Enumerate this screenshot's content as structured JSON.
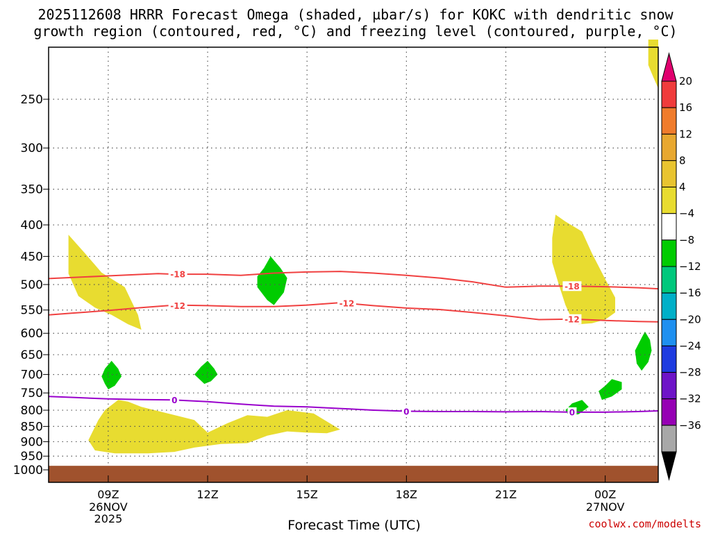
{
  "title": {
    "line1": "2025112608 HRRR Forecast Omega (shaded, µbar/s) for KOKC with dendritic snow",
    "line2": "growth region (contoured, red, °C) and freezing level (contoured, purple, °C)"
  },
  "x_axis_title": "Forecast Time (UTC)",
  "credit": "coolwx.com/modelts",
  "chart_data": {
    "type": "time-height contour",
    "x_range_hours": [
      7.2,
      25.6
    ],
    "x_ticks": [
      {
        "hour": 9,
        "label": "09Z",
        "sub": [
          "26NOV",
          "2025"
        ]
      },
      {
        "hour": 12,
        "label": "12Z",
        "sub": []
      },
      {
        "hour": 15,
        "label": "15Z",
        "sub": []
      },
      {
        "hour": 18,
        "label": "18Z",
        "sub": []
      },
      {
        "hour": 21,
        "label": "21Z",
        "sub": []
      },
      {
        "hour": 24,
        "label": "00Z",
        "sub": [
          "27NOV"
        ]
      }
    ],
    "y_scale": "log pressure (hPa), inverted",
    "y_range_hpa": [
      1050,
      200
    ],
    "y_ticks": [
      250,
      300,
      350,
      400,
      450,
      500,
      550,
      600,
      650,
      700,
      750,
      800,
      850,
      900,
      950,
      1000
    ],
    "grid": true,
    "ground_color": "#a0522d",
    "ground_top_hpa": 985,
    "colorbar": {
      "labels": [
        "20",
        "16",
        "12",
        "8",
        "4",
        "−4",
        "−8",
        "−12",
        "−16",
        "−20",
        "−24",
        "−28",
        "−32",
        "−36"
      ],
      "colors": [
        "#e0006e",
        "#f03c3c",
        "#f07c2c",
        "#e8a830",
        "#e8c430",
        "#e8dc30",
        "#ffffff",
        "#00cc00",
        "#00c87c",
        "#00b0c8",
        "#1e90f0",
        "#1e3ce0",
        "#6e14c8",
        "#9600b4",
        "#a8a8a8",
        "#000000"
      ]
    },
    "contours": [
      {
        "name": "-18",
        "color": "#f04040",
        "points": [
          [
            7.2,
            489
          ],
          [
            9,
            484
          ],
          [
            10.5,
            480
          ],
          [
            11,
            481
          ],
          [
            12,
            481
          ],
          [
            13,
            483
          ],
          [
            14,
            479
          ],
          [
            15,
            477
          ],
          [
            16,
            476
          ],
          [
            17,
            479
          ],
          [
            18,
            483
          ],
          [
            19,
            488
          ],
          [
            20,
            495
          ],
          [
            21,
            505
          ],
          [
            22,
            503
          ],
          [
            23,
            503
          ],
          [
            24,
            504
          ],
          [
            25,
            506
          ],
          [
            25.6,
            508
          ]
        ],
        "labels": [
          [
            11.1,
            481
          ],
          [
            23.0,
            503
          ]
        ]
      },
      {
        "name": "-12",
        "color": "#f04040",
        "points": [
          [
            7.2,
            560
          ],
          [
            8,
            556
          ],
          [
            9,
            551
          ],
          [
            10,
            545
          ],
          [
            11,
            540
          ],
          [
            12,
            541
          ],
          [
            13,
            543
          ],
          [
            14,
            543
          ],
          [
            15,
            540
          ],
          [
            16,
            535
          ],
          [
            17,
            541
          ],
          [
            18,
            546
          ],
          [
            19,
            549
          ],
          [
            20,
            555
          ],
          [
            21,
            562
          ],
          [
            22,
            570
          ],
          [
            23,
            569
          ],
          [
            24,
            572
          ],
          [
            25,
            574
          ],
          [
            25.6,
            575
          ]
        ],
        "labels": [
          [
            11.1,
            541
          ],
          [
            16.2,
            536
          ],
          [
            23.0,
            569
          ]
        ]
      },
      {
        "name": "0",
        "color": "#9900cc",
        "points": [
          [
            7.2,
            760
          ],
          [
            8,
            763
          ],
          [
            9,
            767
          ],
          [
            10,
            769
          ],
          [
            11,
            770
          ],
          [
            12,
            775
          ],
          [
            13,
            782
          ],
          [
            14,
            788
          ],
          [
            15,
            790
          ],
          [
            16,
            795
          ],
          [
            17,
            800
          ],
          [
            18,
            803
          ],
          [
            19,
            804
          ],
          [
            20,
            804
          ],
          [
            21,
            805
          ],
          [
            22,
            804
          ],
          [
            23,
            806
          ],
          [
            24,
            806
          ],
          [
            25,
            804
          ],
          [
            25.6,
            802
          ]
        ],
        "labels": [
          [
            11.0,
            770
          ],
          [
            18.0,
            804
          ],
          [
            23.0,
            806
          ]
        ]
      }
    ],
    "omega_regions": [
      {
        "color": "#e8dc30",
        "points": [
          [
            7.8,
            415
          ],
          [
            8.3,
            445
          ],
          [
            8.8,
            478
          ],
          [
            9.5,
            505
          ],
          [
            9.9,
            560
          ],
          [
            10.0,
            592
          ],
          [
            9.6,
            580
          ],
          [
            9.1,
            560
          ],
          [
            8.6,
            545
          ],
          [
            8.1,
            522
          ],
          [
            7.8,
            480
          ]
        ]
      },
      {
        "color": "#e8dc30",
        "points": [
          [
            8.4,
            895
          ],
          [
            8.7,
            830
          ],
          [
            8.9,
            800
          ],
          [
            9.3,
            770
          ],
          [
            9.6,
            775
          ],
          [
            10.0,
            790
          ],
          [
            10.8,
            810
          ],
          [
            11.6,
            830
          ],
          [
            12.0,
            870
          ],
          [
            12.6,
            840
          ],
          [
            13.2,
            815
          ],
          [
            13.8,
            820
          ],
          [
            14.4,
            800
          ],
          [
            15.2,
            810
          ],
          [
            16.0,
            860
          ],
          [
            15.6,
            872
          ],
          [
            15.0,
            870
          ],
          [
            14.4,
            866
          ],
          [
            13.8,
            880
          ],
          [
            13.2,
            905
          ],
          [
            12.4,
            908
          ],
          [
            11.6,
            920
          ],
          [
            11.0,
            935
          ],
          [
            10.2,
            940
          ],
          [
            9.2,
            940
          ],
          [
            8.6,
            930
          ]
        ]
      },
      {
        "color": "#e8dc30",
        "points": [
          [
            22.5,
            385
          ],
          [
            22.8,
            395
          ],
          [
            23.3,
            410
          ],
          [
            23.6,
            445
          ],
          [
            24.0,
            490
          ],
          [
            24.3,
            525
          ],
          [
            24.3,
            555
          ],
          [
            24.0,
            570
          ],
          [
            23.6,
            578
          ],
          [
            23.2,
            580
          ],
          [
            23.0,
            570
          ],
          [
            22.8,
            540
          ],
          [
            22.6,
            500
          ],
          [
            22.4,
            460
          ],
          [
            22.4,
            420
          ]
        ]
      },
      {
        "color": "#e8dc30",
        "points": [
          [
            25.3,
            200
          ],
          [
            25.6,
            200
          ],
          [
            25.6,
            240
          ],
          [
            25.45,
            230
          ],
          [
            25.3,
            220
          ]
        ]
      },
      {
        "color": "#00cc00",
        "points": [
          [
            13.5,
            485
          ],
          [
            13.7,
            470
          ],
          [
            13.9,
            450
          ],
          [
            14.2,
            470
          ],
          [
            14.4,
            488
          ],
          [
            14.3,
            515
          ],
          [
            14.0,
            540
          ],
          [
            13.8,
            530
          ],
          [
            13.5,
            505
          ]
        ]
      },
      {
        "color": "#00cc00",
        "points": [
          [
            8.8,
            705
          ],
          [
            8.9,
            685
          ],
          [
            9.1,
            665
          ],
          [
            9.3,
            685
          ],
          [
            9.4,
            705
          ],
          [
            9.2,
            730
          ],
          [
            9.0,
            740
          ],
          [
            8.9,
            725
          ]
        ]
      },
      {
        "color": "#00cc00",
        "points": [
          [
            11.6,
            700
          ],
          [
            11.8,
            680
          ],
          [
            12.0,
            665
          ],
          [
            12.2,
            685
          ],
          [
            12.3,
            700
          ],
          [
            12.1,
            718
          ],
          [
            11.9,
            725
          ]
        ]
      },
      {
        "color": "#00cc00",
        "points": [
          [
            22.8,
            800
          ],
          [
            23.0,
            780
          ],
          [
            23.3,
            770
          ],
          [
            23.5,
            790
          ],
          [
            23.2,
            812
          ],
          [
            22.9,
            818
          ]
        ]
      },
      {
        "color": "#00cc00",
        "points": [
          [
            23.8,
            745
          ],
          [
            24.0,
            730
          ],
          [
            24.2,
            712
          ],
          [
            24.5,
            720
          ],
          [
            24.5,
            740
          ],
          [
            24.2,
            760
          ],
          [
            23.9,
            770
          ]
        ]
      },
      {
        "color": "#00cc00",
        "points": [
          [
            24.9,
            640
          ],
          [
            25.1,
            610
          ],
          [
            25.2,
            596
          ],
          [
            25.35,
            615
          ],
          [
            25.4,
            640
          ],
          [
            25.3,
            668
          ],
          [
            25.1,
            690
          ],
          [
            24.95,
            672
          ]
        ]
      }
    ]
  }
}
